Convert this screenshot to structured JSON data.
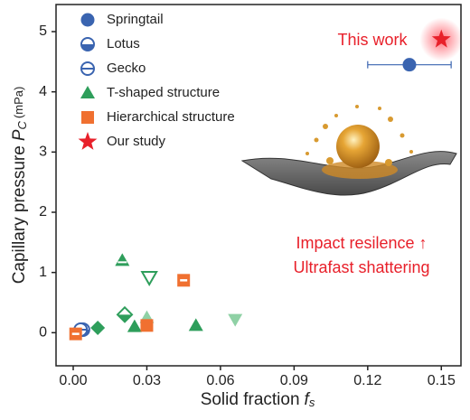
{
  "chart_data": {
    "type": "scatter",
    "xlabel": {
      "text": "Solid fraction",
      "symbol": "f",
      "sub": "s"
    },
    "ylabel": {
      "text": "Capillary pressure",
      "symbol": "P",
      "sub": "C",
      "unit": "(mPa)"
    },
    "xlim": [
      -0.007,
      0.158
    ],
    "ylim": [
      -0.55,
      5.45
    ],
    "xticks": [
      {
        "value": 0,
        "label": "0.00"
      },
      0.03,
      0.06,
      0.09,
      0.12,
      0.15
    ],
    "yticks": [
      0,
      1,
      2,
      3,
      4,
      5
    ],
    "legend": "top-left",
    "series": [
      {
        "name": "Springtail",
        "color": "#3a64b0",
        "marker": "circle",
        "x": [
          0.137
        ],
        "values": [
          4.45
        ],
        "x_err": [
          0.017
        ],
        "markers": [
          "circle"
        ]
      },
      {
        "name": "Lotus",
        "color": "#3a64b0",
        "marker": "circle-half",
        "x": [
          0.004
        ],
        "values": [
          0.05
        ],
        "markers": [
          "circle-half"
        ]
      },
      {
        "name": "Gecko",
        "color": "#3a64b0",
        "marker": "circle-bar",
        "x": [
          0.003
        ],
        "values": [
          0.05
        ],
        "markers": [
          "circle-bar"
        ]
      },
      {
        "name": "T-shaped structure",
        "color": "#2e9e5b",
        "marker": "triangle",
        "x": [
          0.02,
          0.031,
          0.021,
          0.01,
          0.025,
          0.03,
          0.05,
          0.066
        ],
        "values": [
          1.2,
          0.92,
          0.3,
          0.08,
          0.1,
          0.25,
          0.12,
          0.22
        ],
        "markers": [
          "triangle-bar",
          "triangle-down-open",
          "diamond-half",
          "diamond",
          "triangle",
          "triangle",
          "triangle",
          "triangle-down"
        ],
        "colors": [
          "#2e9e5b",
          "#2e9e5b",
          "#2e9e5b",
          "#2e9e5b",
          "#2e9e5b",
          "#8fd1a5",
          "#2e9e5b",
          "#8fd1a5"
        ]
      },
      {
        "name": "Hierarchical structure",
        "color": "#f07030",
        "marker": "square",
        "x": [
          0.001,
          0.045,
          0.03
        ],
        "values": [
          -0.02,
          0.87,
          0.12
        ],
        "markers": [
          "square-bar",
          "square-bar",
          "square"
        ]
      },
      {
        "name": "Our study",
        "color": "#e8202a",
        "marker": "star",
        "x": [
          0.15
        ],
        "values": [
          4.87
        ],
        "markers": [
          "star"
        ],
        "glow": true
      }
    ],
    "annotations": [
      "This work",
      "Impact resilence ↑",
      "Ultrafast shattering"
    ]
  }
}
